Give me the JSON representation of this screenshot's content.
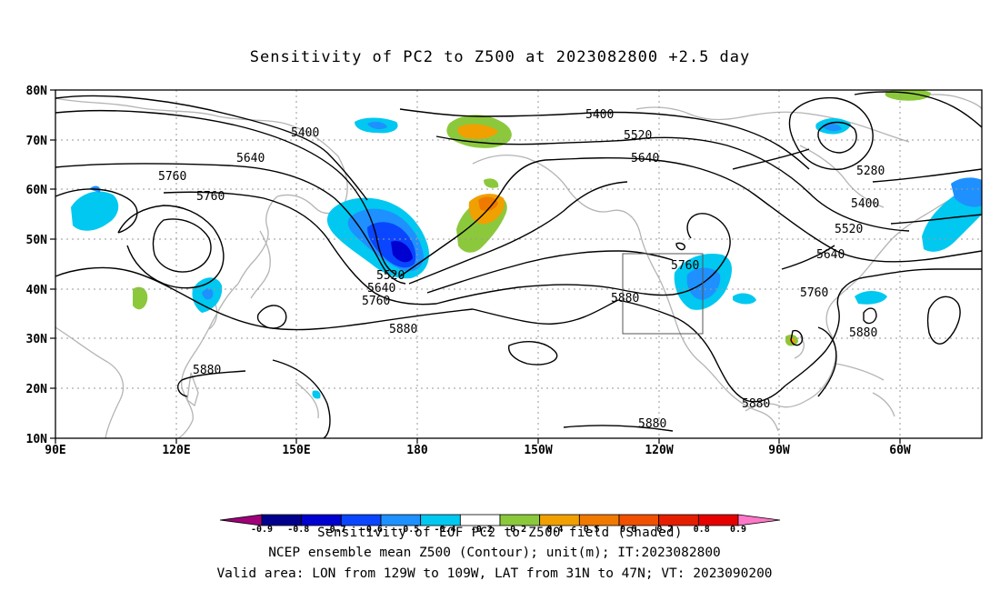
{
  "title": "Sensitivity of PC2 to Z500 at 2023082800 +2.5 day",
  "lat_labels": [
    "80N",
    "70N",
    "60N",
    "50N",
    "40N",
    "30N",
    "20N",
    "10N"
  ],
  "lon_labels": [
    "90E",
    "120E",
    "150E",
    "180",
    "150W",
    "120W",
    "90W",
    "60W"
  ],
  "contour_labels": [
    "5400",
    "5400",
    "5520",
    "5640",
    "5640",
    "5760",
    "5760",
    "5280",
    "5400",
    "5520",
    "5640",
    "5760",
    "5760",
    "5520",
    "5640",
    "5760",
    "5880",
    "5880",
    "5880",
    "5880",
    "5880",
    "5880"
  ],
  "colorbar": {
    "ticks": [
      "-0.9",
      "-0.8",
      "-0.7",
      "-0.6",
      "-0.5",
      "-0.4",
      "-0.2",
      "0.2",
      "0.4",
      "0.5",
      "0.6",
      "0.7",
      "0.8",
      "0.9"
    ],
    "colors": [
      "#a0007a",
      "#00008c",
      "#0000d0",
      "#0a46ff",
      "#1e90ff",
      "#00c8f0",
      "#ffffff",
      "#8cc83c",
      "#f0a000",
      "#f07a00",
      "#f05000",
      "#e61e00",
      "#e60000",
      "#ff78c8"
    ],
    "label": "Sensitivity of EOF PC2 to Z500 field (Shaded)"
  },
  "footer": {
    "line1": "NCEP ensemble mean Z500 (Contour); unit(m); IT:2023082800",
    "line2": "Valid area: LON from 129W to 109W, LAT from 31N to 47N; VT: 2023090200"
  },
  "colors": {
    "coast": "#b4b4b4",
    "grid": "#9a9a9a",
    "contour": "#000000"
  }
}
